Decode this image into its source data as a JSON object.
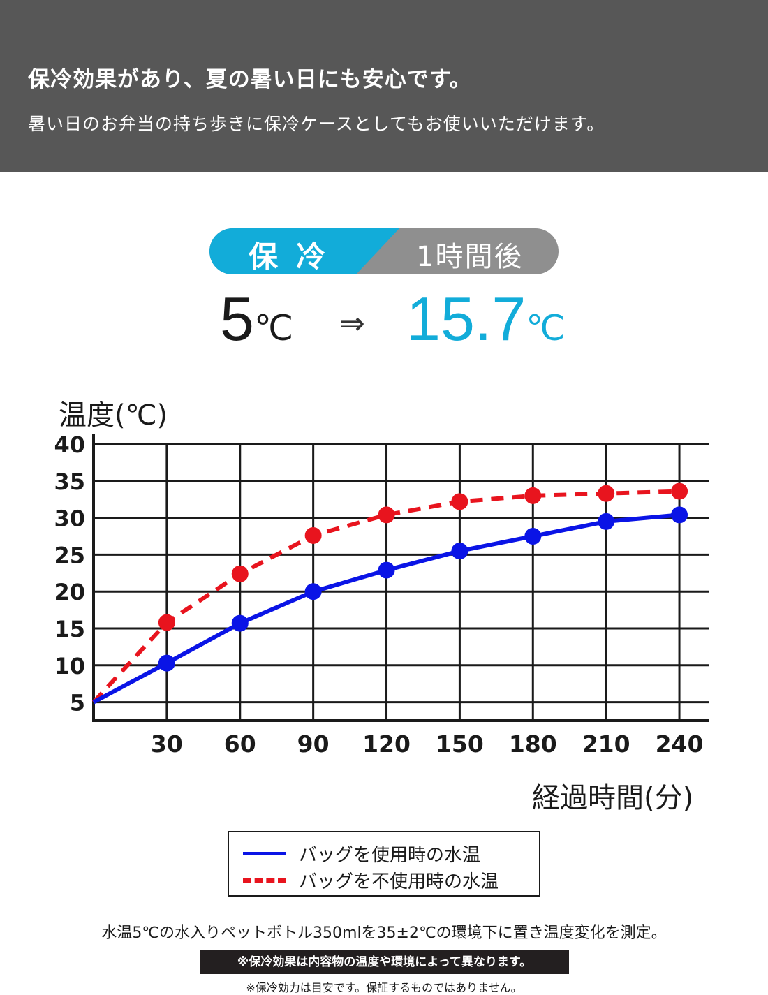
{
  "header": {
    "title": "保冷効果があり、夏の暑い日にも安心です。",
    "subtitle": "暑い日のお弁当の持ち歩きに保冷ケースとしてもお使いいただけます。"
  },
  "badge": {
    "label": "保冷",
    "time": "1時間後"
  },
  "temps": {
    "from_value": "5",
    "to_value": "15.7",
    "unit": "℃",
    "arrow": "⇒"
  },
  "colors": {
    "accent": "#12acd9",
    "header_bg": "#575757",
    "series_with_bag": "#0a14e6",
    "series_without_bag": "#e8141e"
  },
  "chart_data": {
    "type": "line",
    "ylabel": "温度(℃)",
    "xlabel": "経過時間(分)",
    "x": [
      0,
      30,
      60,
      90,
      120,
      150,
      180,
      210,
      240
    ],
    "x_tick_labels": [
      "30",
      "60",
      "90",
      "120",
      "150",
      "180",
      "210",
      "240"
    ],
    "y_tick_labels": [
      "5",
      "10",
      "15",
      "20",
      "25",
      "30",
      "35",
      "40"
    ],
    "xlim": [
      0,
      252
    ],
    "ylim": [
      2.5,
      40
    ],
    "grid": true,
    "legend_position": "bottom",
    "series": [
      {
        "name": "バッグを使用時の水温",
        "style": "solid",
        "color": "#0a14e6",
        "values": [
          5,
          10.3,
          15.7,
          20.0,
          22.9,
          25.5,
          27.5,
          29.5,
          30.4
        ]
      },
      {
        "name": "バッグを不使用時の水温",
        "style": "dashed",
        "color": "#e8141e",
        "values": [
          5,
          15.8,
          22.4,
          27.6,
          30.4,
          32.2,
          33.0,
          33.3,
          33.6
        ]
      }
    ]
  },
  "notes": {
    "main": "水温5℃の水入りペットボトル350mlを35±2℃の環境下に置き温度変化を測定。",
    "warning": "※保冷効果は内容物の温度や環境によって異なります。",
    "disclaimer": "※保冷効力は目安です。保証するものではありません。"
  }
}
